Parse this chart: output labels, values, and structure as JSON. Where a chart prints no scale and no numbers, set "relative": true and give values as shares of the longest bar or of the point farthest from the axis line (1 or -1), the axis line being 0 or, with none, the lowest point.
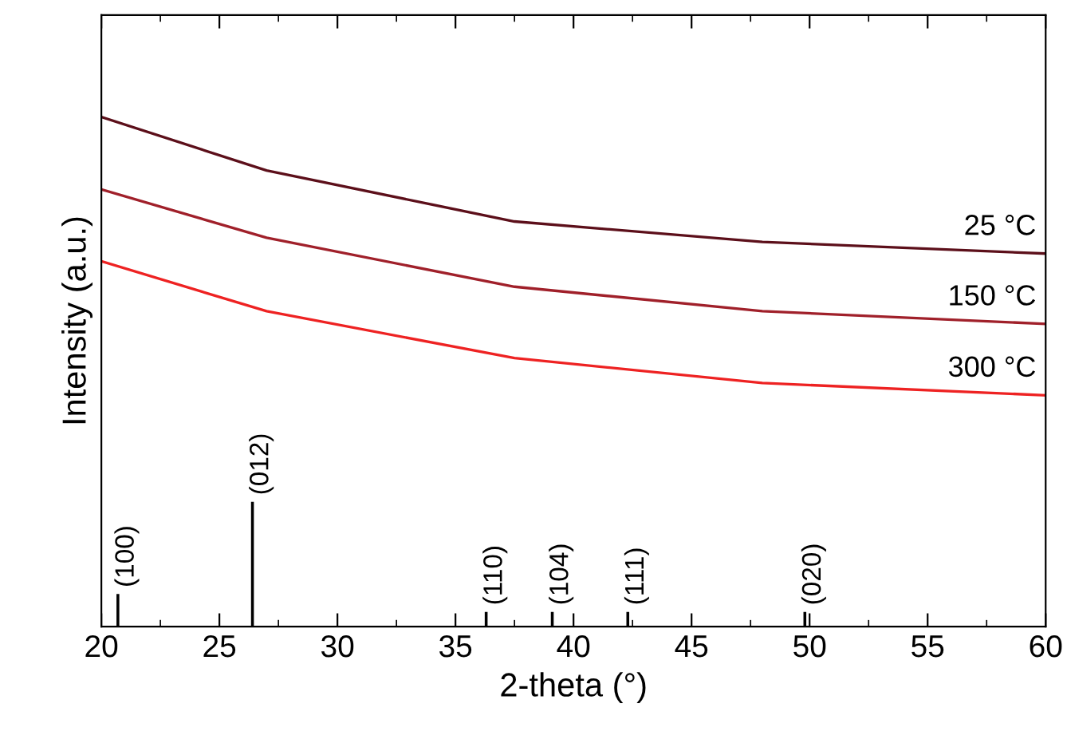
{
  "chart_data": {
    "type": "line",
    "xlabel": "2-theta (°)",
    "ylabel": "Intensity (a.u.)",
    "relative": true,
    "xlim": [
      20,
      60
    ],
    "xticks": [
      20,
      25,
      30,
      35,
      40,
      45,
      50,
      55,
      60
    ],
    "legend": false,
    "series": [
      {
        "name": "25 °C",
        "color": "#5c0f1a",
        "x": [
          20,
          27,
          37.5,
          48,
          60
        ],
        "values": [
          1,
          0.895,
          0.795,
          0.755,
          0.732
        ]
      },
      {
        "name": "150 °C",
        "color": "#a0202a",
        "x": [
          20,
          27,
          37.5,
          48,
          60
        ],
        "values": [
          0.858,
          0.763,
          0.667,
          0.619,
          0.594
        ]
      },
      {
        "name": "300 °C",
        "color": "#ee2222",
        "x": [
          20,
          27,
          37.5,
          48,
          60
        ],
        "values": [
          0.717,
          0.619,
          0.527,
          0.478,
          0.454
        ]
      },
      {
        "type": "bar",
        "color": "#000000",
        "x": [
          20.7,
          26.4,
          36.3,
          39.1,
          42.3,
          49.8
        ],
        "values": [
          0.064,
          0.245,
          0.029,
          0.029,
          0.029,
          0.029
        ]
      }
    ],
    "annotations": [
      {
        "text": "(100)",
        "x": 20.7,
        "y": 0.064
      },
      {
        "text": "(012)",
        "x": 26.4,
        "y": 0.245
      },
      {
        "text": "(110)",
        "x": 36.3,
        "y": 0.029
      },
      {
        "text": "(104)",
        "x": 39.1,
        "y": 0.029
      },
      {
        "text": "(111)",
        "x": 42.3,
        "y": 0.029
      },
      {
        "text": "(020)",
        "x": 49.8,
        "y": 0.029
      }
    ]
  }
}
